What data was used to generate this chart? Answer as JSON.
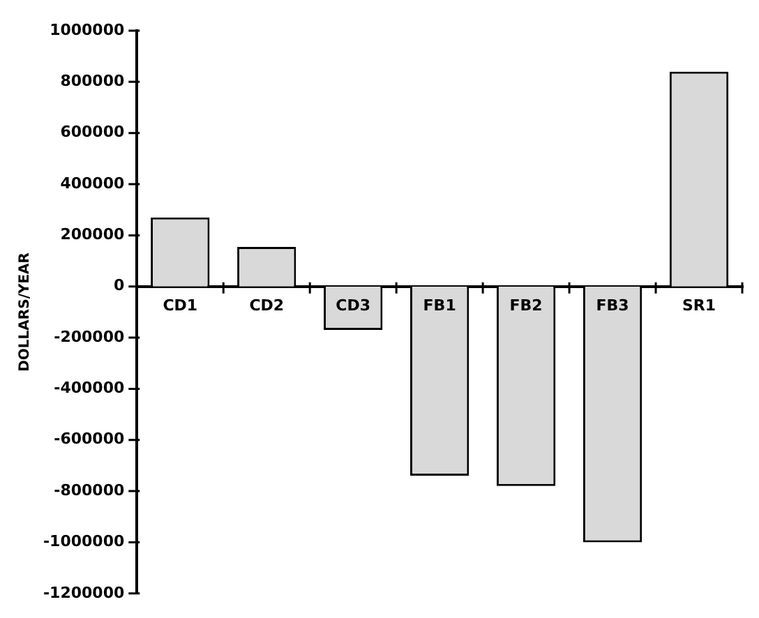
{
  "chart_data": {
    "type": "bar",
    "ylabel": "DOLLARS/YEAR",
    "categories": [
      "CD1",
      "CD2",
      "CD3",
      "FB1",
      "FB2",
      "FB3",
      "SR1"
    ],
    "values": [
      270000,
      155000,
      -170000,
      -740000,
      -780000,
      -1000000,
      840000
    ],
    "color": "#d9d9d9",
    "ylim": [
      -1200000,
      1000000
    ],
    "yticks": [
      -1200000,
      -1000000,
      -800000,
      -600000,
      -400000,
      -200000,
      0,
      200000,
      400000,
      600000,
      800000,
      1000000
    ],
    "grid": false,
    "legend": false
  }
}
